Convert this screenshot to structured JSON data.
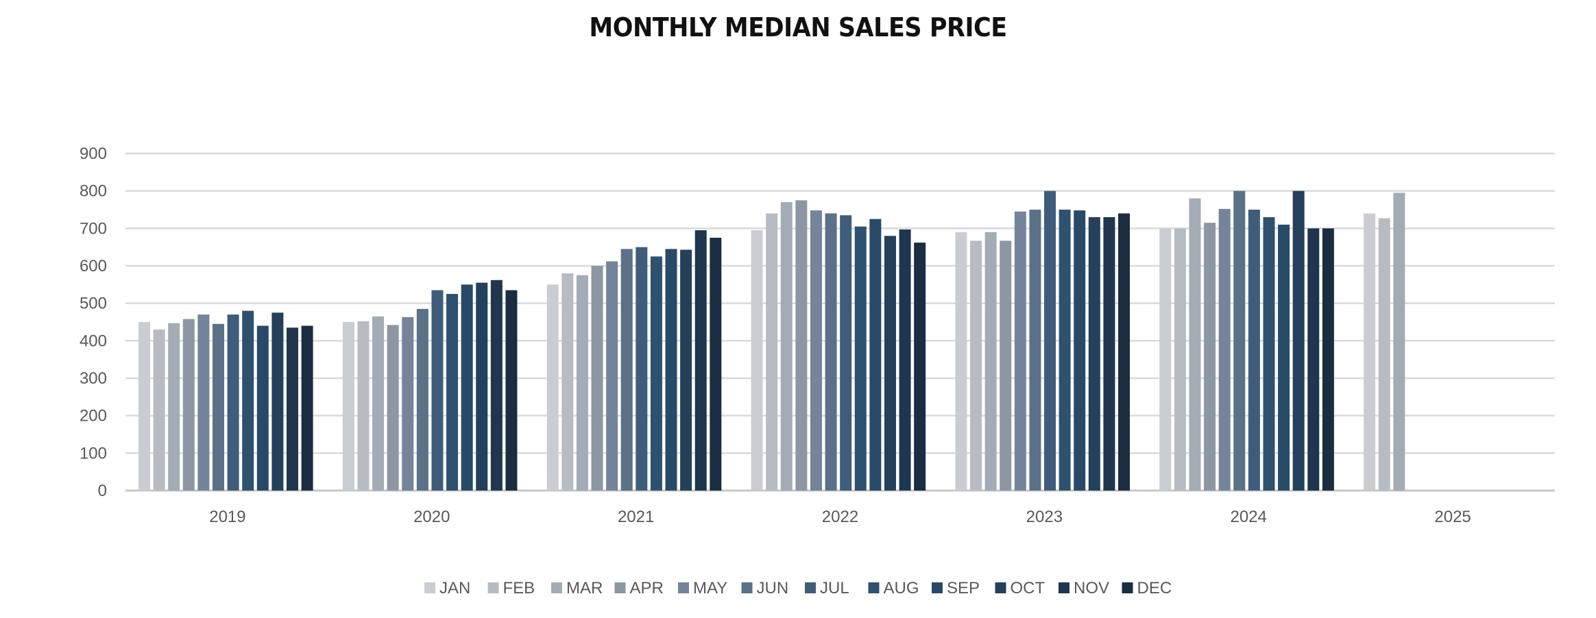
{
  "chart_data": {
    "type": "bar",
    "title": "MONTHLY MEDIAN SALES PRICE",
    "xlabel": "",
    "ylabel": "",
    "ylim": [
      0,
      900
    ],
    "yticks": [
      0,
      100,
      200,
      300,
      400,
      500,
      600,
      700,
      800,
      900
    ],
    "grid": true,
    "legend_position": "bottom",
    "categories": [
      "2019",
      "2020",
      "2021",
      "2022",
      "2023",
      "2024",
      "2025"
    ],
    "series": [
      {
        "name": "JAN",
        "color": "#c9cdd2",
        "values": [
          450,
          450,
          550,
          695,
          690,
          700,
          740
        ]
      },
      {
        "name": "FEB",
        "color": "#b7bcc3",
        "values": [
          430,
          452,
          580,
          740,
          667,
          700,
          727
        ]
      },
      {
        "name": "MAR",
        "color": "#a3abb5",
        "values": [
          447,
          465,
          575,
          770,
          690,
          780,
          795
        ]
      },
      {
        "name": "APR",
        "color": "#8c97a3",
        "values": [
          458,
          442,
          600,
          775,
          667,
          715,
          null
        ]
      },
      {
        "name": "MAY",
        "color": "#74849a",
        "values": [
          470,
          463,
          612,
          748,
          745,
          752,
          null
        ]
      },
      {
        "name": "JUN",
        "color": "#5a7188",
        "values": [
          445,
          485,
          645,
          740,
          750,
          800,
          null
        ]
      },
      {
        "name": "JUL",
        "color": "#3f5d7b",
        "values": [
          470,
          535,
          650,
          735,
          800,
          750,
          null
        ]
      },
      {
        "name": "AUG",
        "color": "#2f5170",
        "values": [
          480,
          525,
          625,
          705,
          750,
          730,
          null
        ]
      },
      {
        "name": "SEP",
        "color": "#284a68",
        "values": [
          440,
          550,
          645,
          725,
          748,
          710,
          null
        ]
      },
      {
        "name": "OCT",
        "color": "#24405b",
        "values": [
          475,
          555,
          643,
          680,
          730,
          800,
          null
        ]
      },
      {
        "name": "NOV",
        "color": "#1f364e",
        "values": [
          435,
          562,
          695,
          697,
          730,
          700,
          null
        ]
      },
      {
        "name": "DEC",
        "color": "#1b2d41",
        "values": [
          440,
          535,
          675,
          662,
          740,
          700,
          null
        ]
      }
    ]
  }
}
